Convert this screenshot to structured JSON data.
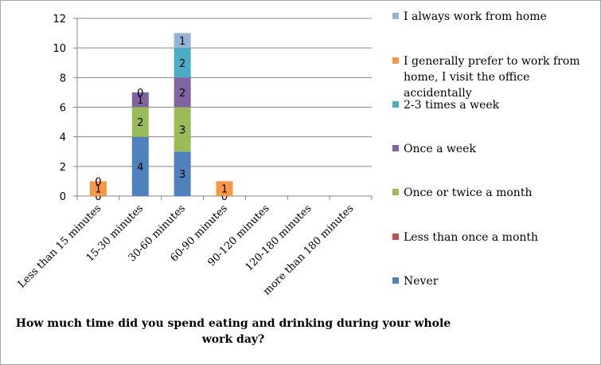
{
  "chart_data": {
    "type": "bar",
    "stacked": true,
    "title": "",
    "xlabel": "How much time did you spend eating and drinking during your whole work day?",
    "ylabel": "",
    "ylim": [
      0,
      12
    ],
    "yticks": [
      0,
      2,
      4,
      6,
      8,
      10,
      12
    ],
    "grid": true,
    "legend_position": "right",
    "categories": [
      "Less than 15 minutes",
      "15-30 minutes",
      "30-60 minutes",
      "60-90 minutes",
      "90-120 minutes",
      "120-180 minutes",
      "more than 180 minutes"
    ],
    "series": [
      {
        "name": "Never",
        "color": "#4f81bd",
        "values": [
          0,
          4,
          3,
          0,
          null,
          null,
          null
        ]
      },
      {
        "name": "Less than once a month",
        "color": "#c0504d",
        "values": [
          null,
          null,
          null,
          null,
          null,
          null,
          null
        ]
      },
      {
        "name": "Once or twice a month",
        "color": "#9bbb59",
        "values": [
          null,
          2,
          3,
          null,
          null,
          null,
          null
        ]
      },
      {
        "name": "Once a week",
        "color": "#8064a2",
        "values": [
          null,
          1,
          2,
          null,
          null,
          null,
          null
        ]
      },
      {
        "name": "2-3 times a week",
        "color": "#4bacc6",
        "values": [
          null,
          null,
          2,
          null,
          null,
          null,
          null
        ]
      },
      {
        "name": "I generally prefer to work from home, I visit the office accidentally",
        "color": "#f79646",
        "values": [
          1,
          0,
          null,
          1,
          null,
          null,
          null
        ]
      },
      {
        "name": "I always work from home",
        "color": "#95b3d7",
        "values": [
          0,
          null,
          1,
          null,
          null,
          null,
          null
        ]
      }
    ]
  },
  "legend_order": [
    "I always work from home",
    "I generally prefer to work from home, I visit the office accidentally",
    "2-3 times a week",
    "Once a week",
    "Once or twice a month",
    "Less than once a month",
    "Never"
  ]
}
